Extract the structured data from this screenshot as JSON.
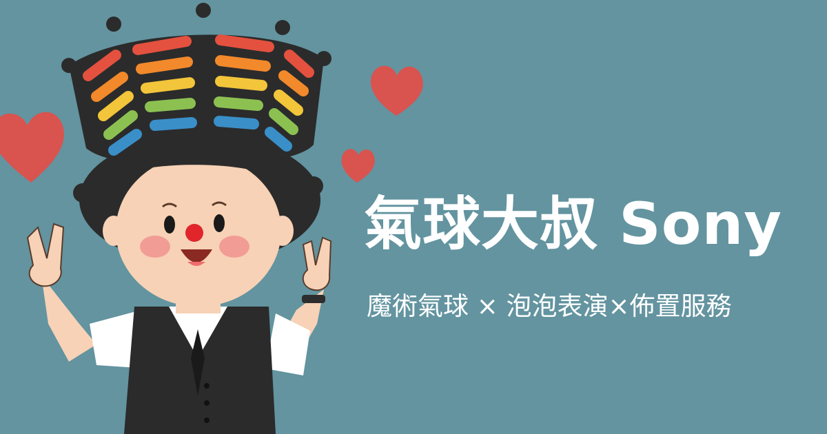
{
  "banner": {
    "title": "氣球大叔 Sony",
    "subtitle": "魔術氣球 × 泡泡表演×佈置服務"
  },
  "colors": {
    "background": "#6394a0",
    "text": "#ffffff",
    "heart": "#d9534f",
    "balloon_rows": [
      "#e4513f",
      "#f2892b",
      "#f2c53a",
      "#8cc152",
      "#3a8fc8"
    ]
  },
  "illustration": {
    "subject": "balloon-uncle-cartoon",
    "icons": [
      "heart-icon",
      "balloon-hat-icon",
      "peace-sign-hand-icon",
      "bow-tie-icon"
    ]
  }
}
